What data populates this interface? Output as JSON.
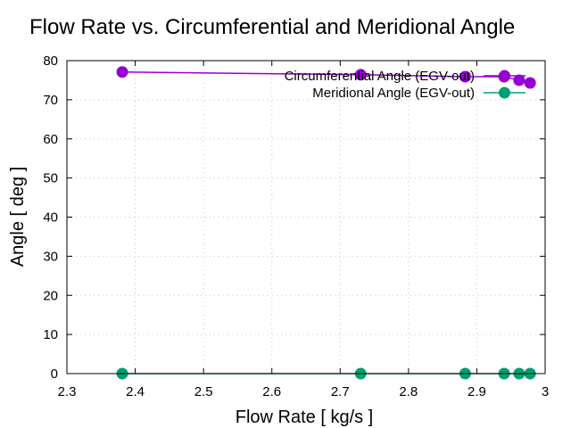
{
  "chart_data": {
    "type": "line",
    "title": "Flow Rate vs. Circumferential and Meridional Angle",
    "xlabel": "Flow Rate [ kg/s ]",
    "ylabel": "Angle [ deg ]",
    "xlim": [
      2.3,
      3.0
    ],
    "ylim": [
      0,
      80
    ],
    "xticks": [
      2.3,
      2.4,
      2.5,
      2.6,
      2.7,
      2.8,
      2.9,
      3.0
    ],
    "xtick_labels": [
      "2.3",
      "2.4",
      "2.5",
      "2.6",
      "2.7",
      "2.8",
      "2.9",
      "3"
    ],
    "yticks": [
      0,
      10,
      20,
      30,
      40,
      50,
      60,
      70,
      80
    ],
    "ytick_labels": [
      "0",
      "10",
      "20",
      "30",
      "40",
      "50",
      "60",
      "70",
      "80"
    ],
    "grid": true,
    "legend_position": "top-right",
    "series": [
      {
        "name": "Circumferential Angle (EGV-out)",
        "color": "#9400d3",
        "x": [
          2.381,
          2.73,
          2.883,
          2.94,
          2.962,
          2.978
        ],
        "y": [
          77.1,
          76.4,
          75.9,
          75.9,
          75.0,
          74.3
        ]
      },
      {
        "name": "Meridional Angle (EGV-out)",
        "color": "#009e73",
        "x": [
          2.381,
          2.73,
          2.883,
          2.94,
          2.962,
          2.978
        ],
        "y": [
          0,
          0,
          0,
          0,
          0,
          0
        ]
      }
    ]
  }
}
